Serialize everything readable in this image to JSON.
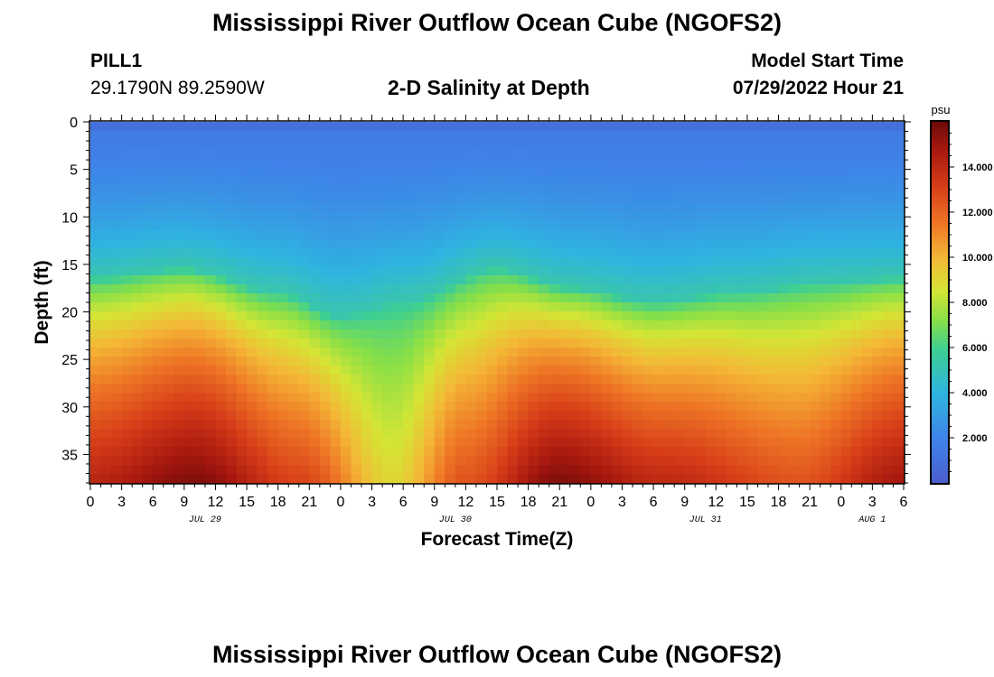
{
  "header": {
    "title": "Mississippi River Outflow Ocean Cube (NGOFS2)",
    "station": "PILL1",
    "coords": "29.1790N  89.2590W",
    "subtitle": "2-D Salinity at Depth",
    "model_start_label": "Model Start Time",
    "model_start_value": "07/29/2022 Hour 21"
  },
  "footer": {
    "title_repeat": "Mississippi River Outflow Ocean Cube (NGOFS2)"
  },
  "chart_data": {
    "type": "heatmap",
    "title": "2-D Salinity at Depth",
    "xlabel": "Forecast Time(Z)",
    "ylabel": "Depth (ft)",
    "colorbar_unit": "psu",
    "colorbar_ticks": [
      "2.000",
      "4.000",
      "6.000",
      "8.000",
      "10.000",
      "12.000",
      "14.000"
    ],
    "colorbar_values": [
      2,
      4,
      6,
      8,
      10,
      12,
      14
    ],
    "colorbar_range": [
      0,
      16
    ],
    "ylim": [
      0,
      38
    ],
    "y_ticks": [
      0,
      5,
      10,
      15,
      20,
      25,
      30,
      35
    ],
    "x_ticks": [
      "0",
      "3",
      "6",
      "9",
      "12",
      "15",
      "18",
      "21",
      "0",
      "3",
      "6",
      "9",
      "12",
      "15",
      "18",
      "21",
      "0",
      "3",
      "6",
      "9",
      "12",
      "15",
      "18",
      "21",
      "0",
      "3",
      "6"
    ],
    "x_hours": [
      0,
      3,
      6,
      9,
      12,
      15,
      18,
      21,
      24,
      27,
      30,
      33,
      36,
      39,
      42,
      45,
      48,
      51,
      54,
      57,
      60,
      63,
      66,
      69,
      72,
      75,
      78
    ],
    "xlim": [
      0,
      78
    ],
    "date_labels": [
      {
        "text": "JUL 29",
        "hour": 11
      },
      {
        "text": "JUL 30",
        "hour": 35
      },
      {
        "text": "JUL 31",
        "hour": 59
      },
      {
        "text": "AUG 1",
        "hour": 75
      }
    ],
    "grid": false,
    "halocline_depth_ft": [
      {
        "hour": 0,
        "depth": 16.5
      },
      {
        "hour": 9,
        "depth": 15.5
      },
      {
        "hour": 18,
        "depth": 18
      },
      {
        "hour": 24,
        "depth": 20.5
      },
      {
        "hour": 30,
        "depth": 19
      },
      {
        "hour": 39,
        "depth": 15.5
      },
      {
        "hour": 46,
        "depth": 17.5
      },
      {
        "hour": 54,
        "depth": 19
      },
      {
        "hour": 62,
        "depth": 18
      },
      {
        "hour": 70,
        "depth": 17
      },
      {
        "hour": 78,
        "depth": 16.5
      }
    ],
    "bottom_salinity_psu": [
      {
        "hour": 0,
        "value": 14.2
      },
      {
        "hour": 10,
        "value": 15.6
      },
      {
        "hour": 20,
        "value": 13
      },
      {
        "hour": 29,
        "value": 9
      },
      {
        "hour": 36,
        "value": 12.5
      },
      {
        "hour": 45,
        "value": 15.6
      },
      {
        "hour": 55,
        "value": 14
      },
      {
        "hour": 68,
        "value": 12.5
      },
      {
        "hour": 78,
        "value": 14.8
      }
    ]
  }
}
